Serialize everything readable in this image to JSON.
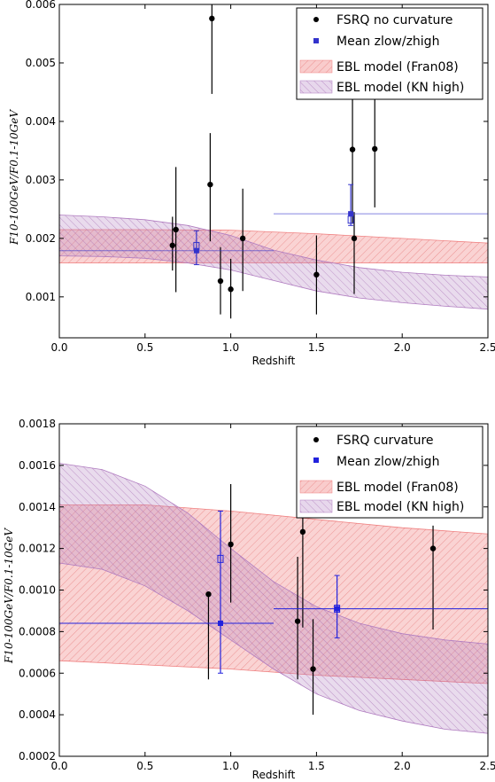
{
  "chart_data": [
    {
      "type": "scatter",
      "xlabel": "Redshift",
      "ylabel": "F10-100GeV/F0.1-10GeV",
      "xlim": [
        0.0,
        2.5
      ],
      "ylim": [
        0.0003,
        0.006
      ],
      "x_ticks": [
        "0.0",
        "0.5",
        "1.0",
        "1.5",
        "2.0",
        "2.5"
      ],
      "y_ticks": [
        "0.001",
        "0.002",
        "0.003",
        "0.004",
        "0.005",
        "0.006"
      ],
      "legend": [
        {
          "label": "FSRQ no curvature",
          "color": "#000000",
          "symbol": "circle"
        },
        {
          "label": "Mean zlow/zhigh",
          "color": "#3333cc",
          "symbol": "square"
        },
        {
          "label": "EBL model (Fran08)",
          "color": "#f08080",
          "symbol": "band"
        },
        {
          "label": "EBL model (KN high)",
          "color": "#b07cc0",
          "symbol": "band"
        }
      ],
      "legend_placement": "top-right",
      "points": [
        {
          "x": 0.66,
          "y": 0.00188,
          "ylo": 0.00145,
          "yhi": 0.00237
        },
        {
          "x": 0.68,
          "y": 0.00215,
          "ylo": 0.00108,
          "yhi": 0.00322
        },
        {
          "x": 0.88,
          "y": 0.00292,
          "ylo": 0.00195,
          "yhi": 0.0038
        },
        {
          "x": 0.89,
          "y": 0.00576,
          "ylo": 0.00447,
          "yhi": 0.006
        },
        {
          "x": 0.94,
          "y": 0.00127,
          "ylo": 0.0007,
          "yhi": 0.00185
        },
        {
          "x": 1.0,
          "y": 0.00113,
          "ylo": 0.00063,
          "yhi": 0.00165
        },
        {
          "x": 1.07,
          "y": 0.002,
          "ylo": 0.0011,
          "yhi": 0.00285
        },
        {
          "x": 1.5,
          "y": 0.00138,
          "ylo": 0.0007,
          "yhi": 0.00205
        },
        {
          "x": 1.71,
          "y": 0.00352,
          "ylo": 0.00225,
          "yhi": 0.0044
        },
        {
          "x": 1.72,
          "y": 0.002,
          "ylo": 0.00105,
          "yhi": 0.00245
        },
        {
          "x": 1.84,
          "y": 0.00353,
          "ylo": 0.00253,
          "yhi": 0.0044
        }
      ],
      "means": [
        {
          "x": 0.8,
          "y": 0.00179,
          "xlo": 0.0,
          "xhi": 1.25,
          "ylo": 0.00155,
          "yhi": 0.00213,
          "open_y": 0.00187
        },
        {
          "x": 1.7,
          "y": 0.00242,
          "xlo": 1.25,
          "xhi": 2.5,
          "ylo": 0.00222,
          "yhi": 0.00292,
          "open_y": 0.00232
        }
      ],
      "bands": [
        {
          "name": "EBL model (Fran08)",
          "color": "#f08080",
          "x": [
            0.0,
            0.5,
            1.0,
            1.5,
            2.0,
            2.5
          ],
          "lower": [
            0.00158,
            0.00158,
            0.00158,
            0.00158,
            0.00158,
            0.00158
          ],
          "upper": [
            0.00215,
            0.00215,
            0.00214,
            0.00208,
            0.002,
            0.00192
          ]
        },
        {
          "name": "EBL model (KN high)",
          "color": "#b07cc0",
          "x": [
            0.0,
            0.25,
            0.5,
            0.75,
            1.0,
            1.25,
            1.5,
            1.75,
            2.0,
            2.25,
            2.5
          ],
          "lower": [
            0.0017,
            0.00169,
            0.00166,
            0.00158,
            0.00146,
            0.00128,
            0.0011,
            0.00098,
            0.0009,
            0.00084,
            0.00079
          ],
          "upper": [
            0.0024,
            0.00237,
            0.00232,
            0.00222,
            0.00205,
            0.0018,
            0.00163,
            0.0015,
            0.00142,
            0.00137,
            0.00134
          ]
        }
      ]
    },
    {
      "type": "scatter",
      "xlabel": "Redshift",
      "ylabel": "F10-100GeV/F0.1-10GeV",
      "xlim": [
        0.0,
        2.5
      ],
      "ylim": [
        0.0002,
        0.0018
      ],
      "x_ticks": [
        "0.0",
        "0.5",
        "1.0",
        "1.5",
        "2.0",
        "2.5"
      ],
      "y_ticks": [
        "0.0002",
        "0.0004",
        "0.0006",
        "0.0008",
        "0.0010",
        "0.0012",
        "0.0014",
        "0.0016",
        "0.0018"
      ],
      "legend": [
        {
          "label": "FSRQ curvature",
          "color": "#000000",
          "symbol": "circle"
        },
        {
          "label": "Mean zlow/zhigh",
          "color": "#2222dd",
          "symbol": "square"
        },
        {
          "label": "EBL model (Fran08)",
          "color": "#f08080",
          "symbol": "band"
        },
        {
          "label": "EBL model (KN high)",
          "color": "#b07cc0",
          "symbol": "band"
        }
      ],
      "legend_placement": "top-right",
      "points": [
        {
          "x": 0.87,
          "y": 0.00098,
          "ylo": 0.00057,
          "yhi": 0.00098
        },
        {
          "x": 1.0,
          "y": 0.00122,
          "ylo": 0.00094,
          "yhi": 0.00151
        },
        {
          "x": 1.39,
          "y": 0.00085,
          "ylo": 0.00057,
          "yhi": 0.00116
        },
        {
          "x": 1.42,
          "y": 0.00128,
          "ylo": 0.00082,
          "yhi": 0.00138
        },
        {
          "x": 1.48,
          "y": 0.00062,
          "ylo": 0.0004,
          "yhi": 0.00086
        },
        {
          "x": 2.18,
          "y": 0.0012,
          "ylo": 0.00081,
          "yhi": 0.00131
        }
      ],
      "means": [
        {
          "x": 0.94,
          "y": 0.00084,
          "xlo": 0.0,
          "xhi": 1.25,
          "ylo": 0.0006,
          "yhi": 0.00138,
          "open_y": 0.00115
        },
        {
          "x": 1.62,
          "y": 0.00091,
          "xlo": 1.25,
          "xhi": 2.5,
          "ylo": 0.00077,
          "yhi": 0.00107,
          "open_y": 0.00091
        }
      ],
      "bands": [
        {
          "name": "EBL model (Fran08)",
          "color": "#f08080",
          "x": [
            0.0,
            0.5,
            1.0,
            1.5,
            2.0,
            2.5
          ],
          "lower": [
            0.00066,
            0.00064,
            0.00062,
            0.00059,
            0.00057,
            0.00055
          ],
          "upper": [
            0.00141,
            0.00141,
            0.00138,
            0.00134,
            0.0013,
            0.00127
          ]
        },
        {
          "name": "EBL model (KN high)",
          "color": "#b07cc0",
          "x": [
            0.0,
            0.25,
            0.5,
            0.75,
            1.0,
            1.25,
            1.5,
            1.75,
            2.0,
            2.25,
            2.5
          ],
          "lower": [
            0.00113,
            0.0011,
            0.00102,
            0.0009,
            0.00076,
            0.00062,
            0.0005,
            0.00042,
            0.00037,
            0.00033,
            0.00031
          ],
          "upper": [
            0.00161,
            0.00158,
            0.0015,
            0.00137,
            0.0012,
            0.00104,
            0.00092,
            0.00084,
            0.00079,
            0.00076,
            0.00074
          ]
        }
      ]
    }
  ]
}
